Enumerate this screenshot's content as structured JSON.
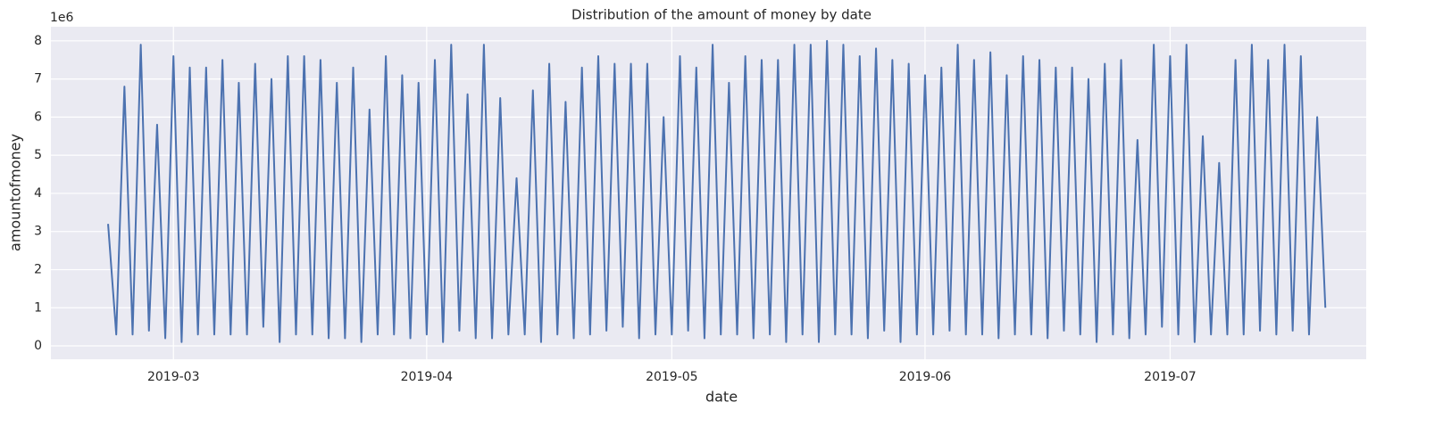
{
  "chart_data": {
    "type": "line",
    "title": "Distribution of the amount of money by date",
    "xlabel": "date",
    "ylabel": "amountofmoney",
    "y_offset_label": "1e6",
    "color": "#4c72b0",
    "grid": true,
    "x": [
      "2019-02-21",
      "2019-02-22",
      "2019-02-23",
      "2019-02-24",
      "2019-02-25",
      "2019-02-26",
      "2019-02-27",
      "2019-02-28",
      "2019-03-01",
      "2019-03-02",
      "2019-03-03",
      "2019-03-04",
      "2019-03-05",
      "2019-03-06",
      "2019-03-07",
      "2019-03-08",
      "2019-03-09",
      "2019-03-10",
      "2019-03-11",
      "2019-03-12",
      "2019-03-13",
      "2019-03-14",
      "2019-03-15",
      "2019-03-16",
      "2019-03-17",
      "2019-03-18",
      "2019-03-19",
      "2019-03-20",
      "2019-03-21",
      "2019-03-22",
      "2019-03-23",
      "2019-03-24",
      "2019-03-25",
      "2019-03-26",
      "2019-03-27",
      "2019-03-28",
      "2019-03-29",
      "2019-03-30",
      "2019-03-31",
      "2019-04-01",
      "2019-04-02",
      "2019-04-03",
      "2019-04-04",
      "2019-04-05",
      "2019-04-06",
      "2019-04-07",
      "2019-04-08",
      "2019-04-09",
      "2019-04-10",
      "2019-04-11",
      "2019-04-12",
      "2019-04-13",
      "2019-04-14",
      "2019-04-15",
      "2019-04-16",
      "2019-04-17",
      "2019-04-18",
      "2019-04-19",
      "2019-04-20",
      "2019-04-21",
      "2019-04-22",
      "2019-04-23",
      "2019-04-24",
      "2019-04-25",
      "2019-04-26",
      "2019-04-27",
      "2019-04-28",
      "2019-04-29",
      "2019-04-30",
      "2019-05-01",
      "2019-05-02",
      "2019-05-03",
      "2019-05-04",
      "2019-05-05",
      "2019-05-06",
      "2019-05-07",
      "2019-05-08",
      "2019-05-09",
      "2019-05-10",
      "2019-05-11",
      "2019-05-12",
      "2019-05-13",
      "2019-05-14",
      "2019-05-15",
      "2019-05-16",
      "2019-05-17",
      "2019-05-18",
      "2019-05-19",
      "2019-05-20",
      "2019-05-21",
      "2019-05-22",
      "2019-05-23",
      "2019-05-24",
      "2019-05-25",
      "2019-05-26",
      "2019-05-27",
      "2019-05-28",
      "2019-05-29",
      "2019-05-30",
      "2019-05-31",
      "2019-06-01",
      "2019-06-02",
      "2019-06-03",
      "2019-06-04",
      "2019-06-05",
      "2019-06-06",
      "2019-06-07",
      "2019-06-08",
      "2019-06-09",
      "2019-06-10",
      "2019-06-11",
      "2019-06-12",
      "2019-06-13",
      "2019-06-14",
      "2019-06-15",
      "2019-06-16",
      "2019-06-17",
      "2019-06-18",
      "2019-06-19",
      "2019-06-20",
      "2019-06-21",
      "2019-06-22",
      "2019-06-23",
      "2019-06-24",
      "2019-06-25",
      "2019-06-26",
      "2019-06-27",
      "2019-06-28",
      "2019-06-29",
      "2019-06-30",
      "2019-07-01",
      "2019-07-02",
      "2019-07-03",
      "2019-07-04",
      "2019-07-05",
      "2019-07-06",
      "2019-07-07",
      "2019-07-08",
      "2019-07-09",
      "2019-07-10",
      "2019-07-11",
      "2019-07-12",
      "2019-07-13",
      "2019-07-14",
      "2019-07-15",
      "2019-07-16",
      "2019-07-17",
      "2019-07-18",
      "2019-07-19",
      "2019-07-20"
    ],
    "values": [
      3.2,
      0.3,
      6.8,
      0.3,
      7.9,
      0.4,
      5.8,
      0.2,
      7.6,
      0.1,
      7.3,
      0.3,
      7.3,
      0.3,
      7.5,
      0.3,
      6.9,
      0.3,
      7.4,
      0.5,
      7.0,
      0.1,
      7.6,
      0.3,
      7.6,
      0.3,
      7.5,
      0.2,
      6.9,
      0.2,
      7.3,
      0.1,
      6.2,
      0.3,
      7.6,
      0.3,
      7.1,
      0.2,
      6.9,
      0.3,
      7.5,
      0.1,
      7.9,
      0.4,
      6.6,
      0.2,
      7.9,
      0.2,
      6.5,
      0.3,
      4.4,
      0.3,
      6.7,
      0.1,
      7.4,
      0.3,
      6.4,
      0.2,
      7.3,
      0.3,
      7.6,
      0.4,
      7.4,
      0.5,
      7.4,
      0.2,
      7.4,
      0.3,
      6.0,
      0.3,
      7.6,
      0.4,
      7.3,
      0.2,
      7.9,
      0.3,
      6.9,
      0.3,
      7.6,
      0.2,
      7.5,
      0.3,
      7.5,
      0.1,
      7.9,
      0.3,
      7.9,
      0.1,
      8.0,
      0.3,
      7.9,
      0.3,
      7.6,
      0.2,
      7.8,
      0.4,
      7.5,
      0.1,
      7.4,
      0.3,
      7.1,
      0.3,
      7.3,
      0.4,
      7.9,
      0.3,
      7.5,
      0.3,
      7.7,
      0.2,
      7.1,
      0.3,
      7.6,
      0.3,
      7.5,
      0.2,
      7.3,
      0.4,
      7.3,
      0.3,
      7.0,
      0.1,
      7.4,
      0.3,
      7.5,
      0.2,
      5.4,
      0.3,
      7.9,
      0.5,
      7.6,
      0.3,
      7.9,
      0.1,
      5.5,
      0.3,
      4.8,
      0.3,
      7.5,
      0.3,
      7.9,
      0.4,
      7.5,
      0.3,
      7.9,
      0.4,
      7.6,
      0.3,
      6.0,
      1.0
    ],
    "xlim": [
      "2019-02-14",
      "2019-07-25"
    ],
    "xticks": [
      {
        "value": "2019-03-01",
        "label": "2019-03"
      },
      {
        "value": "2019-04-01",
        "label": "2019-04"
      },
      {
        "value": "2019-05-01",
        "label": "2019-05"
      },
      {
        "value": "2019-06-01",
        "label": "2019-06"
      },
      {
        "value": "2019-07-01",
        "label": "2019-07"
      }
    ],
    "ylim": [
      -0.35,
      8.37
    ],
    "yticks": [
      0,
      1,
      2,
      3,
      4,
      5,
      6,
      7,
      8
    ]
  }
}
